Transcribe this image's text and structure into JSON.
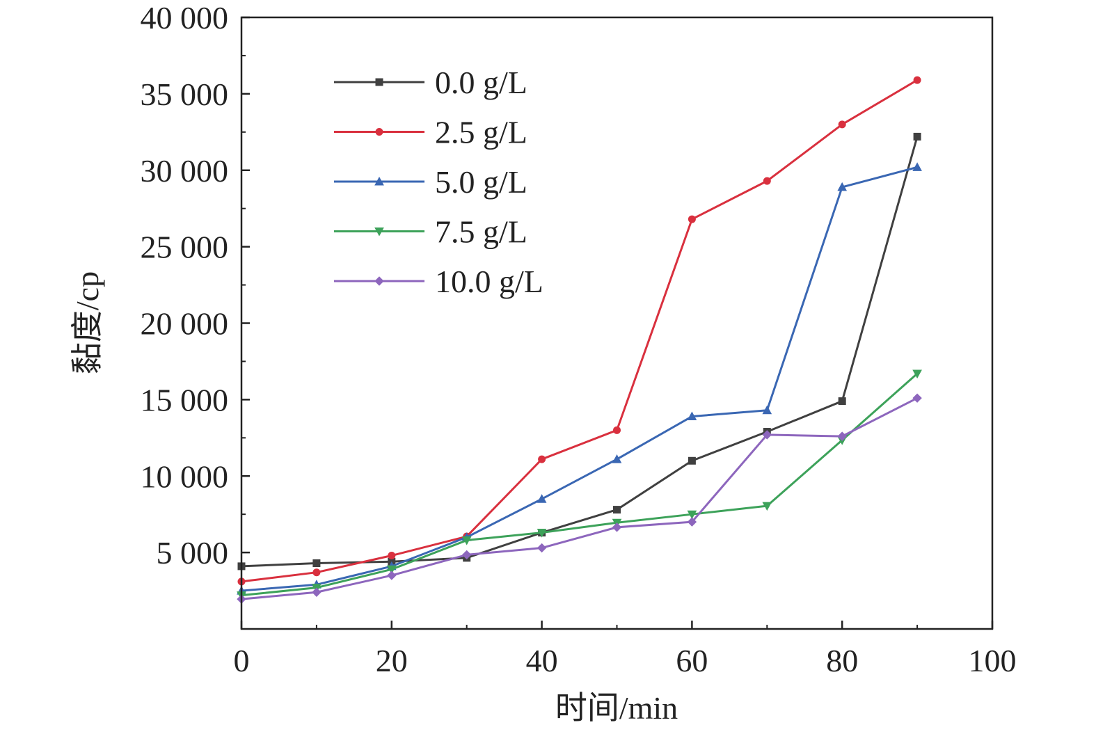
{
  "chart_data": {
    "type": "line",
    "title": "",
    "xlabel": "时间/min",
    "ylabel": "黏度/cp",
    "xlim": [
      0,
      100
    ],
    "ylim": [
      0,
      40000
    ],
    "x_ticks": [
      0,
      20,
      40,
      60,
      80,
      100
    ],
    "x_tick_labels": [
      "0",
      "20",
      "40",
      "60",
      "80",
      "100"
    ],
    "y_ticks": [
      5000,
      10000,
      15000,
      20000,
      25000,
      30000,
      35000,
      40000
    ],
    "y_tick_labels": [
      "5 000",
      "10 000",
      "15 000",
      "20 000",
      "25 000",
      "30 000",
      "35 000",
      "40 000"
    ],
    "grid": false,
    "legend_position": "top-left",
    "x": [
      0,
      10,
      20,
      30,
      40,
      50,
      60,
      70,
      80,
      90
    ],
    "series": [
      {
        "name": "0.0 g/L",
        "color": "#404040",
        "marker": "square",
        "values": [
          4100,
          4300,
          4400,
          4650,
          6300,
          7800,
          11000,
          12900,
          14900,
          32200
        ]
      },
      {
        "name": "2.5 g/L",
        "color": "#d9303e",
        "marker": "circle",
        "values": [
          3100,
          3700,
          4800,
          6050,
          11100,
          13000,
          26800,
          29300,
          33000,
          35900
        ]
      },
      {
        "name": "5.0 g/L",
        "color": "#3a67b3",
        "marker": "triangle-up",
        "values": [
          2500,
          2900,
          4100,
          6000,
          8500,
          11100,
          13900,
          14300,
          28900,
          30200
        ]
      },
      {
        "name": "7.5 g/L",
        "color": "#3da25a",
        "marker": "triangle-down",
        "values": [
          2200,
          2700,
          3900,
          5800,
          6300,
          6950,
          7500,
          8050,
          12350,
          16700
        ]
      },
      {
        "name": "10.0 g/L",
        "color": "#8d66bd",
        "marker": "diamond",
        "values": [
          1950,
          2400,
          3500,
          4850,
          5300,
          6650,
          7000,
          12700,
          12600,
          15100
        ]
      }
    ]
  }
}
